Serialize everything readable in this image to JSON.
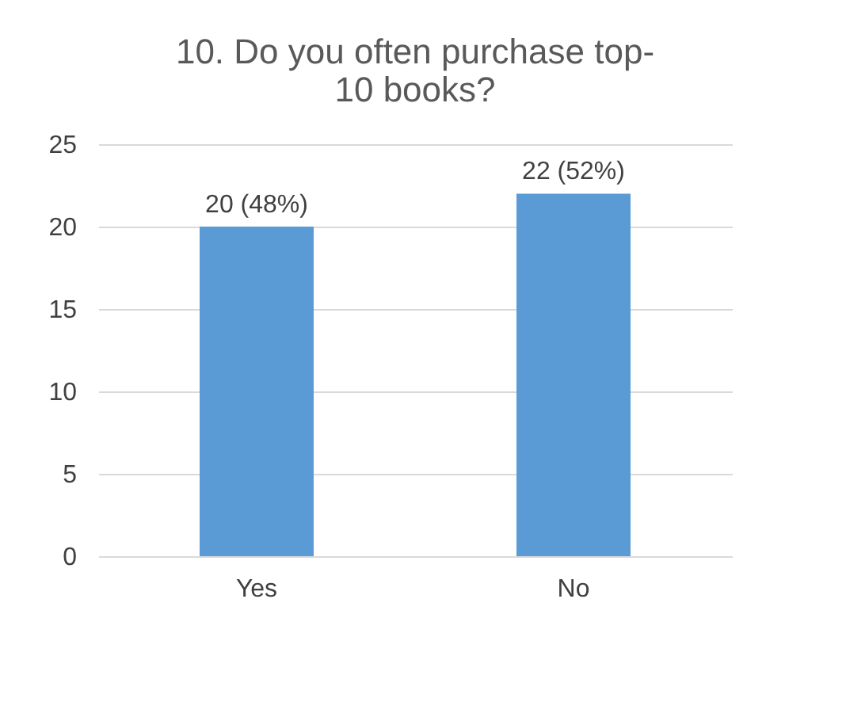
{
  "chart_data": {
    "type": "bar",
    "title": "10. Do you often purchase top-10 books?",
    "categories": [
      "Yes",
      "No"
    ],
    "values": [
      20,
      22
    ],
    "color": "#5b9bd5",
    "value_labels": [
      "20 (48%)",
      "22 (52%)"
    ],
    "ylim": [
      0,
      25
    ],
    "yticks": [
      0,
      5,
      10,
      15,
      20,
      25
    ],
    "grid": "y"
  }
}
